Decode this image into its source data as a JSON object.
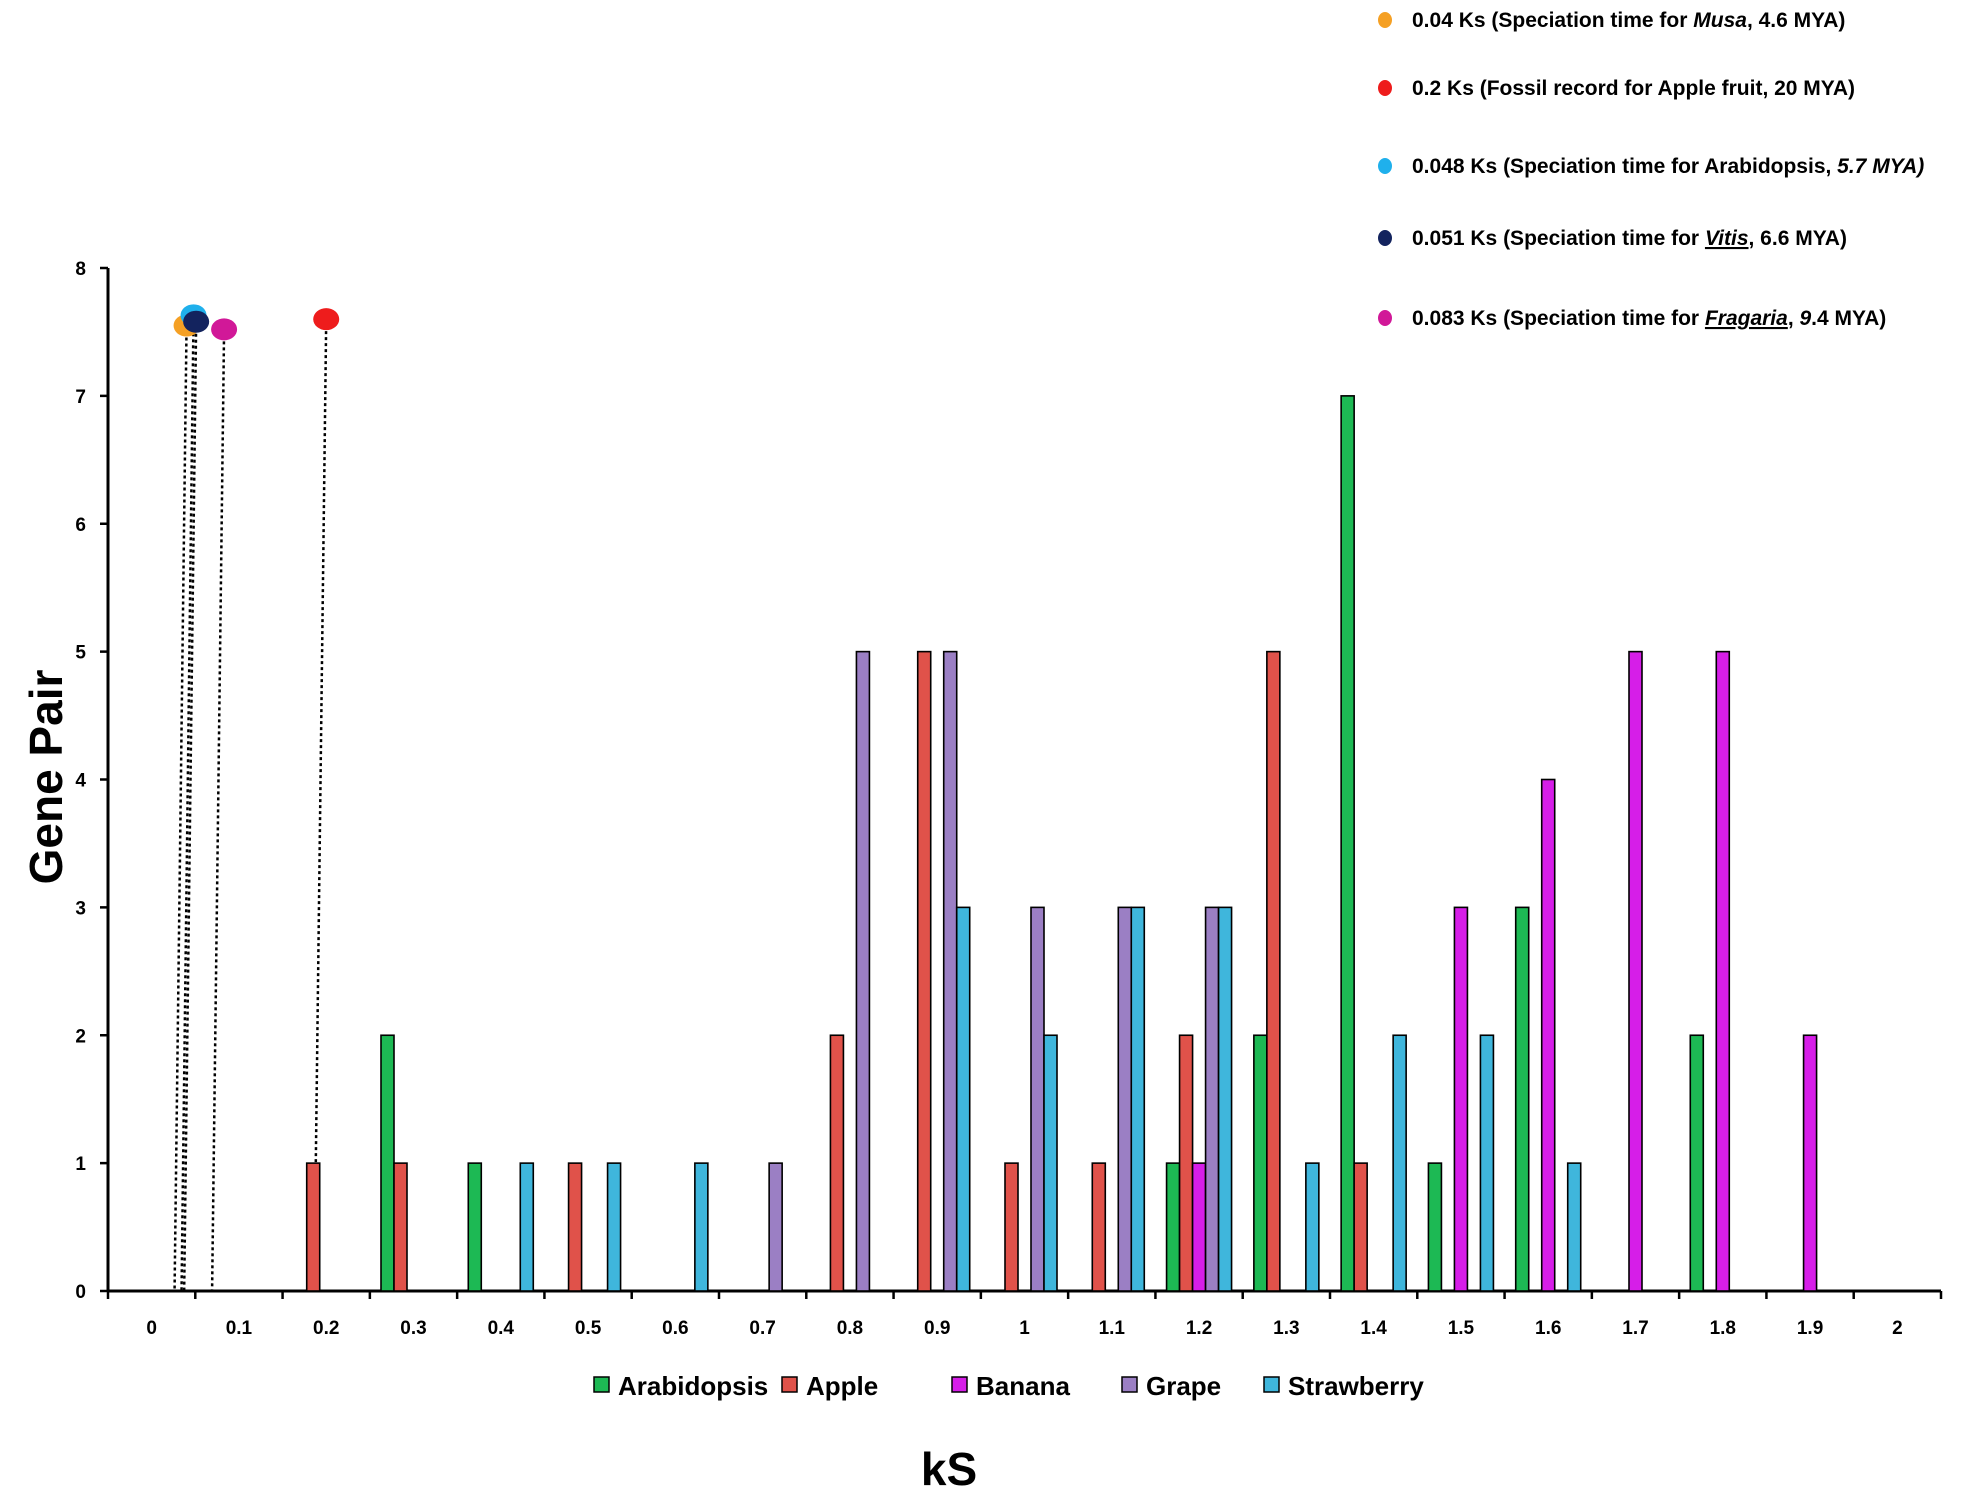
{
  "chart_data": {
    "type": "bar",
    "title": "",
    "xlabel": "kS",
    "ylabel": "Gene Pair",
    "ylim": [
      0,
      8
    ],
    "xlim": [
      0,
      2
    ],
    "grid": false,
    "legend_position": "bottom",
    "y_ticks": [
      "0",
      "1",
      "2",
      "3",
      "4",
      "5",
      "6",
      "7",
      "8"
    ],
    "categories": [
      "0",
      "0.1",
      "0.2",
      "0.3",
      "0.4",
      "0.5",
      "0.6",
      "0.7",
      "0.8",
      "0.9",
      "1",
      "1.1",
      "1.2",
      "1.3",
      "1.4",
      "1.5",
      "1.6",
      "1.7",
      "1.8",
      "1.9",
      "2"
    ],
    "series": [
      {
        "name": "Arabidopsis",
        "color": "#1db954",
        "values": [
          0,
          0,
          0,
          2,
          1,
          0,
          0,
          0,
          0,
          0,
          0,
          0,
          1,
          2,
          7,
          1,
          3,
          0,
          2,
          0,
          0
        ]
      },
      {
        "name": "Apple",
        "color": "#e0524a",
        "values": [
          0,
          0,
          1,
          1,
          0,
          1,
          0,
          0,
          2,
          5,
          1,
          1,
          2,
          5,
          1,
          0,
          0,
          0,
          0,
          0,
          0
        ]
      },
      {
        "name": "Banana",
        "color": "#d61ee8",
        "values": [
          0,
          0,
          0,
          0,
          0,
          0,
          0,
          0,
          0,
          0,
          0,
          0,
          1,
          0,
          0,
          3,
          4,
          5,
          5,
          2,
          0
        ]
      },
      {
        "name": "Grape",
        "color": "#9b7fc4",
        "values": [
          0,
          0,
          0,
          0,
          0,
          0,
          0,
          1,
          5,
          5,
          3,
          3,
          3,
          0,
          0,
          0,
          0,
          0,
          0,
          0,
          0
        ]
      },
      {
        "name": "Strawberry",
        "color": "#3fb6dc",
        "values": [
          0,
          0,
          0,
          0,
          1,
          1,
          1,
          0,
          0,
          3,
          2,
          3,
          3,
          1,
          2,
          2,
          1,
          0,
          0,
          0,
          0
        ]
      }
    ],
    "annotations": [
      {
        "ks": 0.04,
        "value": 7.55,
        "color": "#f5a024",
        "parts": [
          {
            "t": "0.04 Ks (Speciation time for "
          },
          {
            "t": "Musa",
            "i": true
          },
          {
            "t": ", 4.6 MYA)"
          }
        ]
      },
      {
        "ks": 0.2,
        "value": 7.6,
        "color": "#ee1c1c",
        "parts": [
          {
            "t": "0.2 Ks (Fossil record for Apple fruit, 20 MYA)"
          }
        ]
      },
      {
        "ks": 0.048,
        "value": 7.63,
        "color": "#1fb0ec",
        "parts": [
          {
            "t": "0.048 Ks (Speciation time for Arabidopsis, "
          },
          {
            "t": "5.7 MYA)",
            "i": true
          }
        ]
      },
      {
        "ks": 0.051,
        "value": 7.58,
        "color": "#13235e",
        "parts": [
          {
            "t": "0.051 Ks (Speciation time for "
          },
          {
            "t": "Vitis",
            "i": true,
            "w": true
          },
          {
            "t": ", 6.6 MYA)"
          }
        ]
      },
      {
        "ks": 0.083,
        "value": 7.52,
        "color": "#d11898",
        "parts": [
          {
            "t": "0.083 Ks (Speciation time for "
          },
          {
            "t": "Fragaria",
            "i": true,
            "w": true
          },
          {
            "t": ", "
          },
          {
            "t": "9",
            "i": true
          },
          {
            "t": ".4 MYA)"
          }
        ]
      }
    ]
  }
}
